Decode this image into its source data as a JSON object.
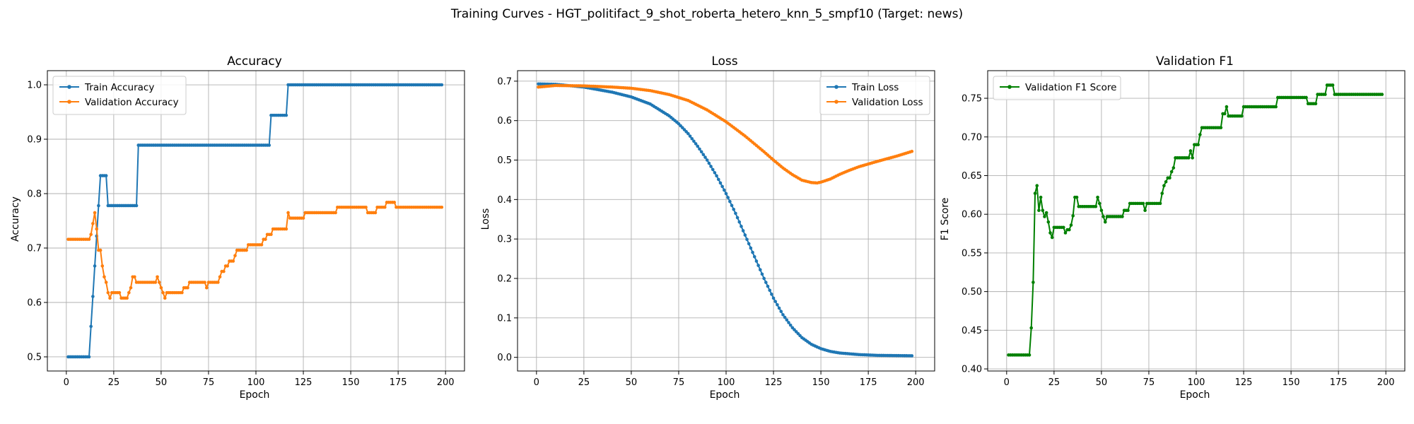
{
  "figure_title": "Training Curves - HGT_politifact_9_shot_roberta_hetero_knn_5_smpf10 (Target: news)",
  "chart_data": [
    {
      "type": "line",
      "title": "Accuracy",
      "xlabel": "Epoch",
      "ylabel": "Accuracy",
      "xlim": [
        -10,
        210
      ],
      "ylim": [
        0.474,
        1.026
      ],
      "xticks": [
        0,
        25,
        50,
        75,
        100,
        125,
        150,
        175,
        200
      ],
      "xtick_labels": [
        "0",
        "25",
        "50",
        "75",
        "100",
        "125",
        "150",
        "175",
        "200"
      ],
      "yticks": [
        0.5,
        0.6,
        0.7,
        0.8,
        0.9,
        1.0
      ],
      "ytick_labels": [
        "0.5",
        "0.6",
        "0.7",
        "0.8",
        "0.9",
        "1.0"
      ],
      "grid": true,
      "legend_position": "upper-left",
      "series": [
        {
          "name": "Train Accuracy",
          "color": "#1f77b4",
          "marker": "dot",
          "segments": [
            [
              1,
              12,
              0.5
            ],
            [
              18,
              21,
              0.833
            ],
            [
              22,
              37,
              0.778
            ],
            [
              38,
              107,
              0.889
            ],
            [
              108,
              116,
              0.944
            ],
            [
              117,
              198,
              1.0
            ]
          ],
          "points": [
            [
              13,
              0.556
            ],
            [
              14,
              0.611
            ],
            [
              15,
              0.667
            ],
            [
              16,
              0.722
            ],
            [
              17,
              0.778
            ]
          ]
        },
        {
          "name": "Validation Accuracy",
          "color": "#ff7f0e",
          "marker": "dot",
          "segments": [
            [
              1,
              12,
              0.716
            ],
            [
              24,
              28,
              0.618
            ],
            [
              29,
              32,
              0.608
            ],
            [
              37,
              47,
              0.637
            ],
            [
              53,
              61,
              0.618
            ],
            [
              62,
              64,
              0.627
            ],
            [
              65,
              73,
              0.637
            ],
            [
              75,
              80,
              0.637
            ],
            [
              86,
              88,
              0.676
            ],
            [
              90,
              95,
              0.696
            ],
            [
              97,
              103,
              0.706
            ],
            [
              104,
              105,
              0.716
            ],
            [
              106,
              108,
              0.725
            ],
            [
              109,
              116,
              0.735
            ],
            [
              118,
              125,
              0.755
            ],
            [
              126,
              142,
              0.765
            ],
            [
              143,
              158,
              0.775
            ],
            [
              159,
              163,
              0.765
            ],
            [
              164,
              168,
              0.775
            ],
            [
              169,
              173,
              0.784
            ],
            [
              174,
              198,
              0.775
            ]
          ],
          "points": [
            [
              13,
              0.725
            ],
            [
              14,
              0.745
            ],
            [
              15,
              0.765
            ],
            [
              16,
              0.735
            ],
            [
              17,
              0.696
            ],
            [
              18,
              0.696
            ],
            [
              19,
              0.667
            ],
            [
              20,
              0.647
            ],
            [
              21,
              0.637
            ],
            [
              22,
              0.618
            ],
            [
              23,
              0.608
            ],
            [
              33,
              0.618
            ],
            [
              34,
              0.627
            ],
            [
              35,
              0.647
            ],
            [
              36,
              0.647
            ],
            [
              48,
              0.647
            ],
            [
              49,
              0.637
            ],
            [
              50,
              0.627
            ],
            [
              51,
              0.618
            ],
            [
              52,
              0.608
            ],
            [
              74,
              0.627
            ],
            [
              81,
              0.647
            ],
            [
              82,
              0.657
            ],
            [
              83,
              0.657
            ],
            [
              84,
              0.667
            ],
            [
              85,
              0.667
            ],
            [
              89,
              0.686
            ],
            [
              96,
              0.706
            ],
            [
              117,
              0.765
            ]
          ]
        }
      ]
    },
    {
      "type": "line",
      "title": "Loss",
      "xlabel": "Epoch",
      "ylabel": "Loss",
      "xlim": [
        -10,
        210
      ],
      "ylim": [
        -0.0346,
        0.7266
      ],
      "xticks": [
        0,
        25,
        50,
        75,
        100,
        125,
        150,
        175,
        200
      ],
      "xtick_labels": [
        "0",
        "25",
        "50",
        "75",
        "100",
        "125",
        "150",
        "175",
        "200"
      ],
      "yticks": [
        0.0,
        0.1,
        0.2,
        0.3,
        0.4,
        0.5,
        0.6,
        0.7
      ],
      "ytick_labels": [
        "0.0",
        "0.1",
        "0.2",
        "0.3",
        "0.4",
        "0.5",
        "0.6",
        "0.7"
      ],
      "grid": true,
      "legend_position": "upper-right",
      "series": [
        {
          "name": "Train Loss",
          "color": "#1f77b4",
          "marker": "dot",
          "anchors": [
            [
              1,
              0.693
            ],
            [
              10,
              0.692
            ],
            [
              25,
              0.685
            ],
            [
              40,
              0.672
            ],
            [
              50,
              0.66
            ],
            [
              60,
              0.642
            ],
            [
              70,
              0.612
            ],
            [
              75,
              0.592
            ],
            [
              80,
              0.567
            ],
            [
              85,
              0.535
            ],
            [
              90,
              0.5
            ],
            [
              95,
              0.46
            ],
            [
              100,
              0.415
            ],
            [
              105,
              0.365
            ],
            [
              110,
              0.31
            ],
            [
              115,
              0.255
            ],
            [
              120,
              0.2
            ],
            [
              125,
              0.15
            ],
            [
              130,
              0.108
            ],
            [
              135,
              0.075
            ],
            [
              140,
              0.05
            ],
            [
              145,
              0.033
            ],
            [
              150,
              0.022
            ],
            [
              155,
              0.015
            ],
            [
              160,
              0.011
            ],
            [
              170,
              0.007
            ],
            [
              180,
              0.005
            ],
            [
              198,
              0.004
            ]
          ]
        },
        {
          "name": "Validation Loss",
          "color": "#ff7f0e",
          "marker": "dot",
          "anchors": [
            [
              1,
              0.685
            ],
            [
              10,
              0.689
            ],
            [
              25,
              0.688
            ],
            [
              40,
              0.685
            ],
            [
              50,
              0.682
            ],
            [
              60,
              0.676
            ],
            [
              70,
              0.666
            ],
            [
              80,
              0.651
            ],
            [
              90,
              0.627
            ],
            [
              100,
              0.597
            ],
            [
              110,
              0.561
            ],
            [
              120,
              0.521
            ],
            [
              125,
              0.5
            ],
            [
              130,
              0.48
            ],
            [
              135,
              0.463
            ],
            [
              140,
              0.449
            ],
            [
              145,
              0.443
            ],
            [
              148,
              0.442
            ],
            [
              150,
              0.444
            ],
            [
              155,
              0.452
            ],
            [
              160,
              0.464
            ],
            [
              165,
              0.474
            ],
            [
              170,
              0.483
            ],
            [
              180,
              0.497
            ],
            [
              190,
              0.51
            ],
            [
              198,
              0.522
            ]
          ]
        }
      ]
    },
    {
      "type": "line",
      "title": "Validation F1",
      "xlabel": "Epoch",
      "ylabel": "F1 Score",
      "xlim": [
        -10,
        210
      ],
      "ylim": [
        0.3973,
        0.7857
      ],
      "xticks": [
        0,
        25,
        50,
        75,
        100,
        125,
        150,
        175,
        200
      ],
      "xtick_labels": [
        "0",
        "25",
        "50",
        "75",
        "100",
        "125",
        "150",
        "175",
        "200"
      ],
      "yticks": [
        0.4,
        0.45,
        0.5,
        0.55,
        0.6,
        0.65,
        0.7,
        0.75
      ],
      "ytick_labels": [
        "0.40",
        "0.45",
        "0.50",
        "0.55",
        "0.60",
        "0.65",
        "0.70",
        "0.75"
      ],
      "grid": true,
      "legend_position": "upper-left",
      "series": [
        {
          "name": "Validation F1 Score",
          "color": "#008000",
          "marker": "dot",
          "segments": [
            [
              1,
              12,
              0.418
            ],
            [
              26,
              30,
              0.583
            ],
            [
              38,
              47,
              0.61
            ],
            [
              53,
              61,
              0.597
            ],
            [
              62,
              64,
              0.605
            ],
            [
              65,
              72,
              0.614
            ],
            [
              74,
              81,
              0.614
            ],
            [
              92,
              96,
              0.673
            ],
            [
              103,
              107,
              0.712
            ],
            [
              108,
              113,
              0.712
            ],
            [
              117,
              124,
              0.727
            ],
            [
              125,
              142,
              0.739
            ],
            [
              143,
              158,
              0.751
            ],
            [
              159,
              163,
              0.743
            ],
            [
              164,
              168,
              0.755
            ],
            [
              169,
              172,
              0.767
            ],
            [
              173,
              198,
              0.755
            ]
          ],
          "points": [
            [
              13,
              0.453
            ],
            [
              14,
              0.512
            ],
            [
              15,
              0.627
            ],
            [
              16,
              0.637
            ],
            [
              17,
              0.605
            ],
            [
              18,
              0.622
            ],
            [
              19,
              0.605
            ],
            [
              20,
              0.597
            ],
            [
              21,
              0.602
            ],
            [
              22,
              0.59
            ],
            [
              23,
              0.576
            ],
            [
              24,
              0.57
            ],
            [
              25,
              0.583
            ],
            [
              31,
              0.576
            ],
            [
              32,
              0.58
            ],
            [
              33,
              0.58
            ],
            [
              34,
              0.586
            ],
            [
              35,
              0.598
            ],
            [
              36,
              0.622
            ],
            [
              37,
              0.622
            ],
            [
              48,
              0.622
            ],
            [
              49,
              0.614
            ],
            [
              50,
              0.605
            ],
            [
              51,
              0.597
            ],
            [
              52,
              0.59
            ],
            [
              73,
              0.605
            ],
            [
              82,
              0.627
            ],
            [
              83,
              0.637
            ],
            [
              84,
              0.642
            ],
            [
              85,
              0.647
            ],
            [
              86,
              0.647
            ],
            [
              87,
              0.655
            ],
            [
              88,
              0.66
            ],
            [
              89,
              0.673
            ],
            [
              90,
              0.673
            ],
            [
              91,
              0.673
            ],
            [
              97,
              0.682
            ],
            [
              98,
              0.673
            ],
            [
              99,
              0.69
            ],
            [
              100,
              0.69
            ],
            [
              101,
              0.69
            ],
            [
              102,
              0.703
            ],
            [
              114,
              0.73
            ],
            [
              115,
              0.73
            ],
            [
              116,
              0.739
            ]
          ]
        }
      ]
    }
  ]
}
